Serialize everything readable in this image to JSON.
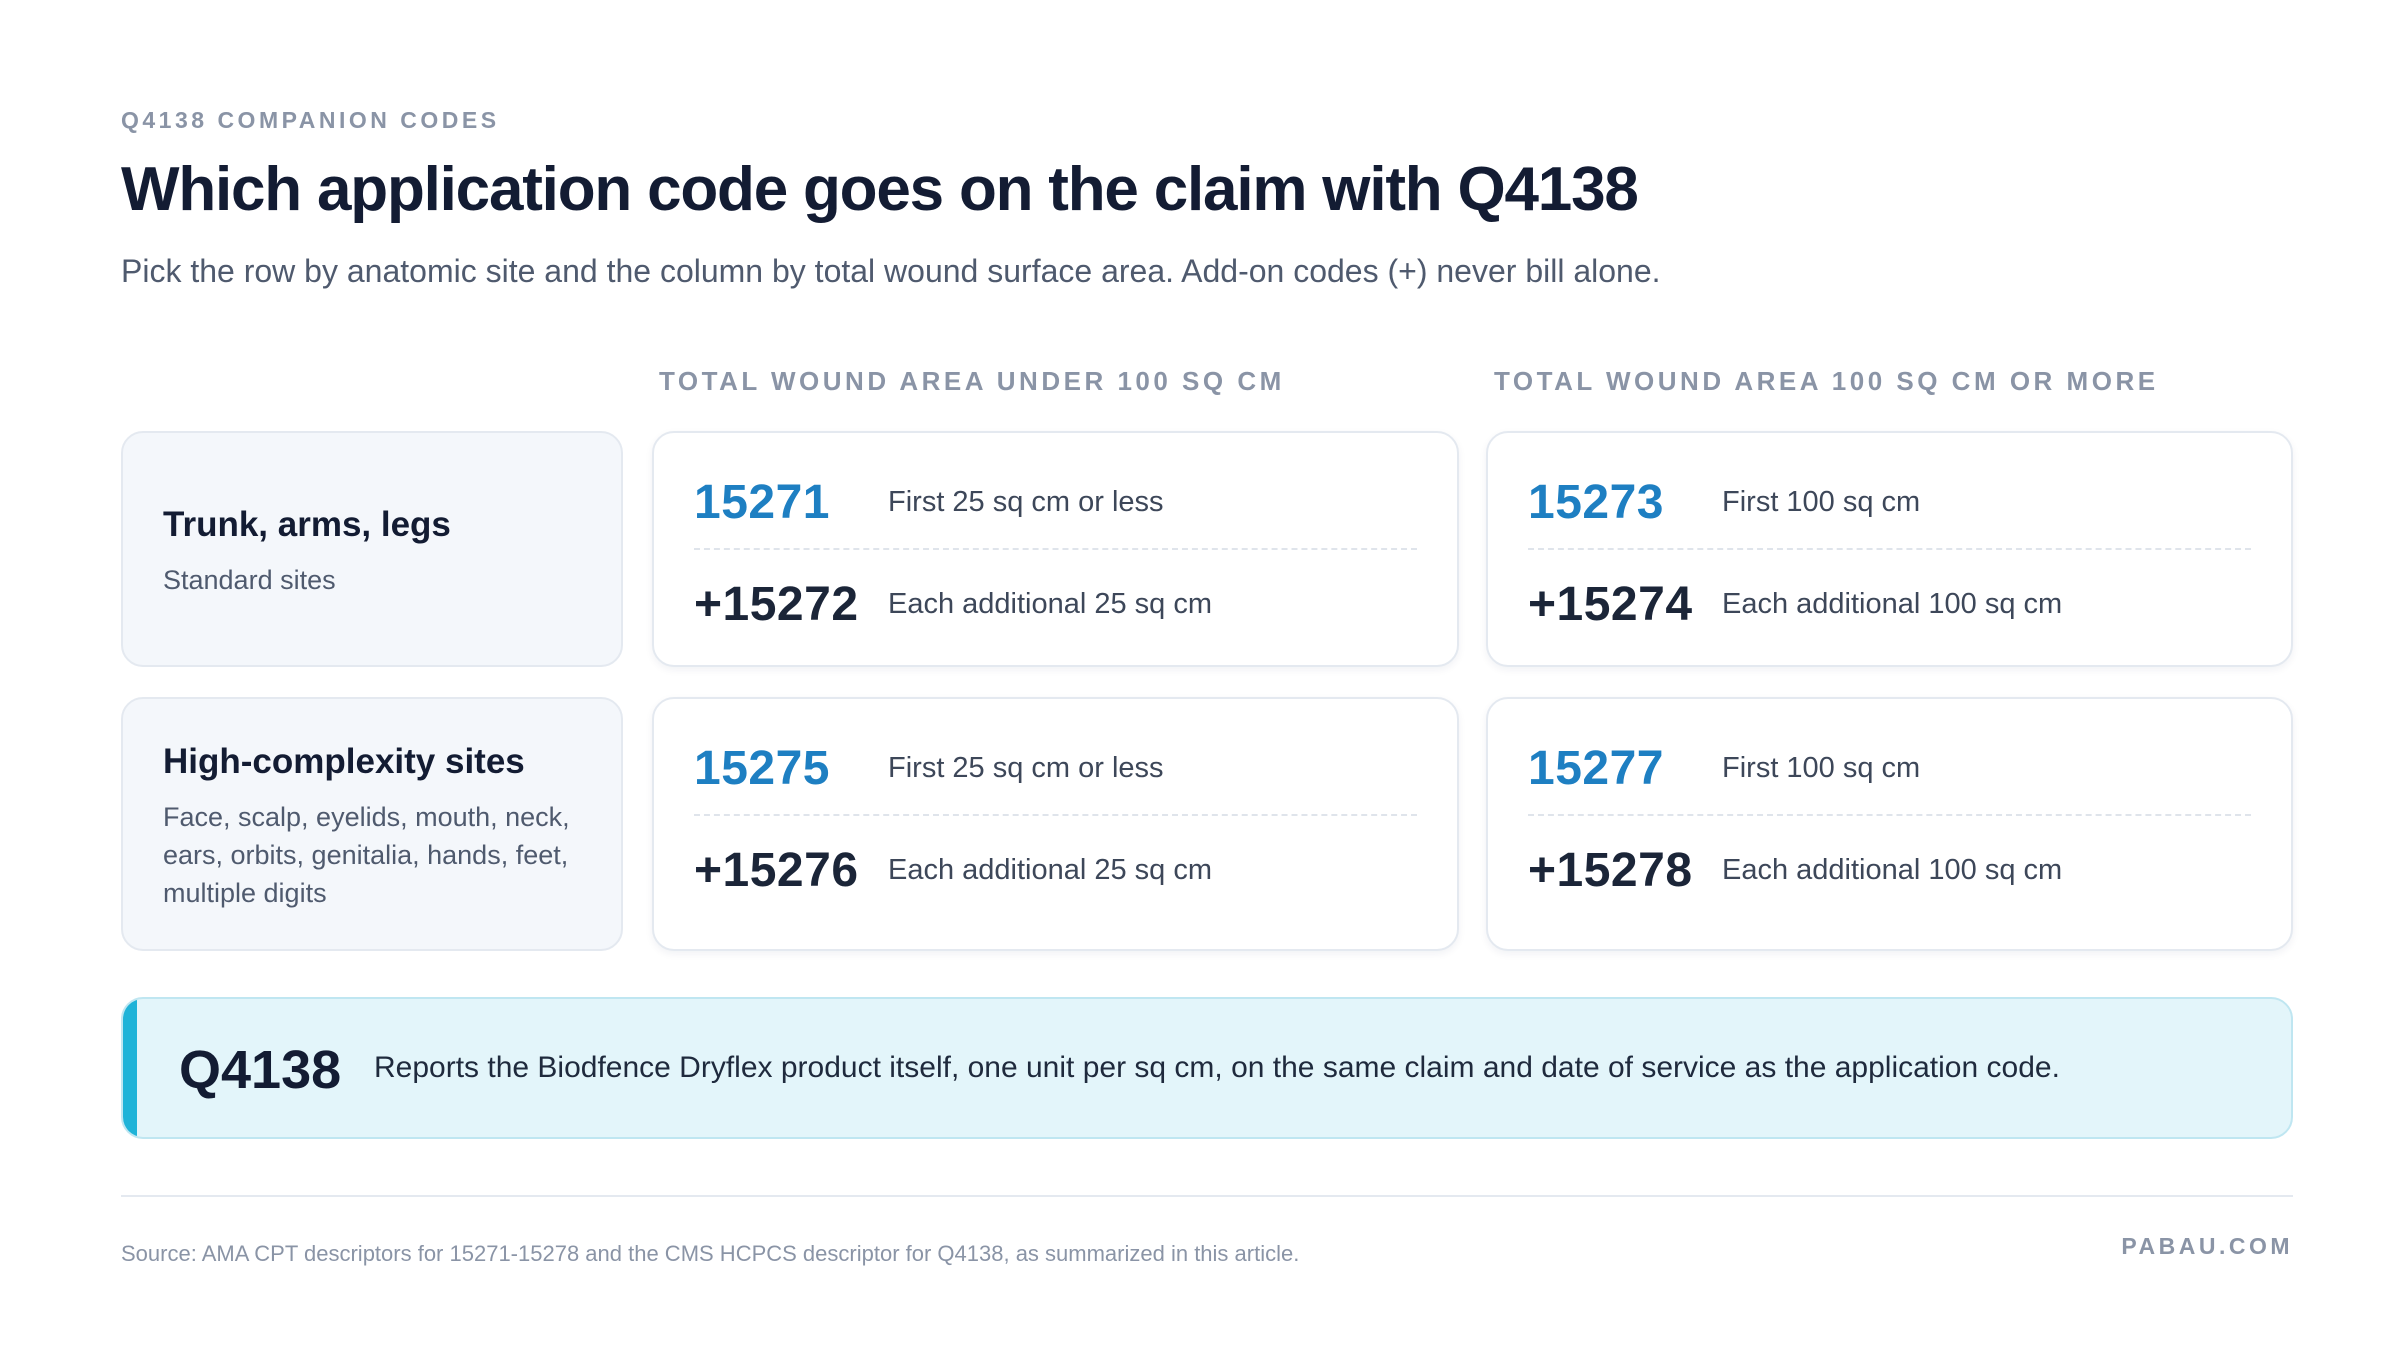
{
  "header": {
    "eyebrow": "Q4138 COMPANION CODES",
    "title": "Which application code goes on the claim with Q4138",
    "subtitle": "Pick the row by anatomic site and the column by total wound surface area. Add-on codes (+) never bill alone."
  },
  "columns": [
    "TOTAL WOUND AREA UNDER 100 SQ CM",
    "TOTAL WOUND AREA 100 SQ CM OR MORE"
  ],
  "rows": [
    {
      "site": "Trunk, arms, legs",
      "desc": "Standard sites",
      "cells": [
        {
          "code": "15271",
          "desc": "First 25 sq cm or less",
          "addon_code": "+15272",
          "addon_desc": "Each additional 25 sq cm"
        },
        {
          "code": "15273",
          "desc": "First 100 sq cm",
          "addon_code": "+15274",
          "addon_desc": "Each additional 100 sq cm"
        }
      ]
    },
    {
      "site": "High-complexity sites",
      "desc": "Face, scalp, eyelids, mouth, neck, ears, orbits, genitalia, hands, feet, multiple digits",
      "cells": [
        {
          "code": "15275",
          "desc": "First 25 sq cm or less",
          "addon_code": "+15276",
          "addon_desc": "Each additional 25 sq cm"
        },
        {
          "code": "15277",
          "desc": "First 100 sq cm",
          "addon_code": "+15278",
          "addon_desc": "Each additional 100 sq cm"
        }
      ]
    }
  ],
  "callout": {
    "code": "Q4138",
    "text": "Reports the Biodfence Dryflex product itself, one unit per sq cm, on the same claim and date of service as the application code."
  },
  "footer": {
    "source": "Source: AMA CPT descriptors for 15271-15278 and the CMS HCPCS descriptor for Q4138, as summarized in this article.",
    "brand": "PABAU.COM"
  },
  "colors": {
    "primary_code": "#1e7fc2",
    "callout_accent": "#1fb3d8",
    "callout_bg": "#e3f5fa",
    "site_card_bg": "#f4f7fb"
  }
}
